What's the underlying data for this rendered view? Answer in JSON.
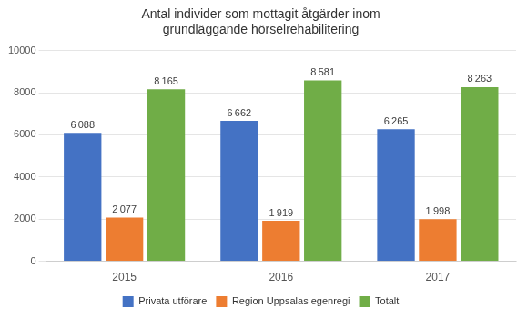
{
  "chart_data": {
    "type": "bar",
    "title": "Antal individer som mottagit åtgärder inom\ngrundläggande hörselrehabilitering",
    "categories": [
      "2015",
      "2016",
      "2017"
    ],
    "series": [
      {
        "name": "Privata utförare",
        "color": "#4472C4",
        "values": [
          6088,
          6662,
          6265
        ],
        "value_labels": [
          "6 088",
          "6 662",
          "6 265"
        ]
      },
      {
        "name": "Region Uppsalas egenregi",
        "color": "#ED7D31",
        "values": [
          2077,
          1919,
          1998
        ],
        "value_labels": [
          "2 077",
          "1 919",
          "1 998"
        ]
      },
      {
        "name": "Totalt",
        "color": "#70AD47",
        "values": [
          8165,
          8581,
          8263
        ],
        "value_labels": [
          "8 165",
          "8 581",
          "8 263"
        ]
      }
    ],
    "ylim": [
      0,
      10000
    ],
    "yticks": [
      0,
      2000,
      4000,
      6000,
      8000,
      10000
    ],
    "grid": true,
    "legend": "bottom",
    "data_labels": true
  }
}
